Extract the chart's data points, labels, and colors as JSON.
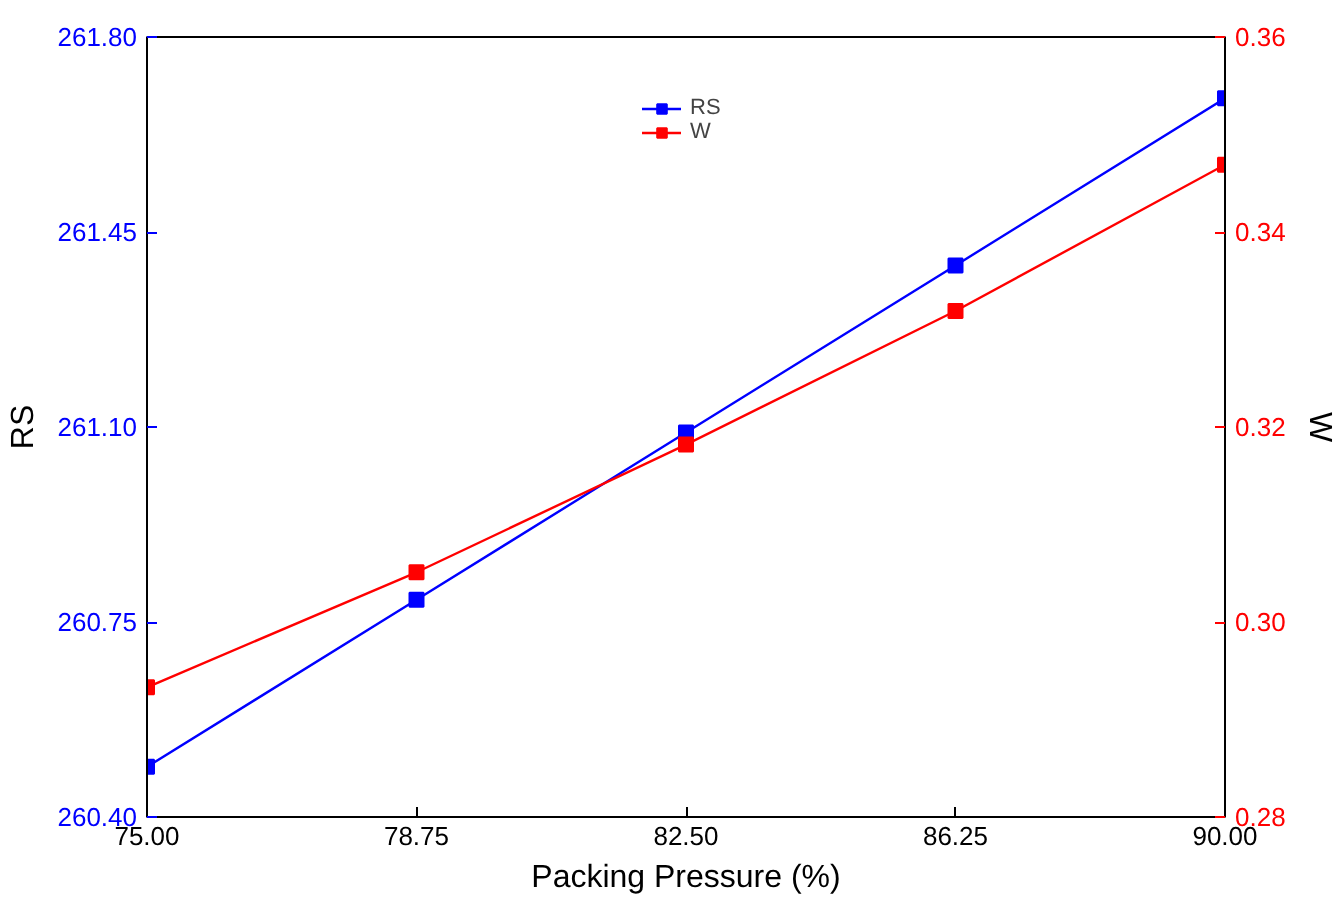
{
  "chart_data": {
    "type": "line",
    "xlabel": "Packing Pressure (%)",
    "ylabel": "RS",
    "y2label": "W",
    "x": [
      75,
      78.75,
      82.5,
      86.25,
      90
    ],
    "series": [
      {
        "name": "RS",
        "color": "#0000ff",
        "values": [
          260.49,
          260.79,
          261.09,
          261.39,
          261.69
        ]
      },
      {
        "name": "W",
        "color": "#ff0000",
        "axis": "y2",
        "values": [
          0.2933,
          0.3051,
          0.3182,
          0.3319,
          0.3469
        ]
      }
    ],
    "xlim": [
      75,
      90
    ],
    "xticks": [
      {
        "value": 75,
        "label": "75.00"
      },
      {
        "value": 78.75,
        "label": "78.75"
      },
      {
        "value": 82.5,
        "label": "82.50"
      },
      {
        "value": 86.25,
        "label": "86.25"
      },
      {
        "value": 90,
        "label": "90.00"
      }
    ],
    "ylim": [
      260.4,
      261.8
    ],
    "yticks": [
      {
        "value": 260.4,
        "label": "260.40"
      },
      {
        "value": 260.75,
        "label": "260.75"
      },
      {
        "value": 261.1,
        "label": "261.10"
      },
      {
        "value": 261.45,
        "label": "261.45"
      },
      {
        "value": 261.8,
        "label": "261.80"
      }
    ],
    "y2lim": [
      0.28,
      0.36
    ],
    "y2ticks": [
      {
        "value": 0.28,
        "label": "0.28"
      },
      {
        "value": 0.3,
        "label": "0.30"
      },
      {
        "value": 0.32,
        "label": "0.32"
      },
      {
        "value": 0.34,
        "label": "0.34"
      },
      {
        "value": 0.36,
        "label": "0.36"
      }
    ],
    "marker": "square",
    "line_style": "solid",
    "legend": "top",
    "grid": false
  }
}
